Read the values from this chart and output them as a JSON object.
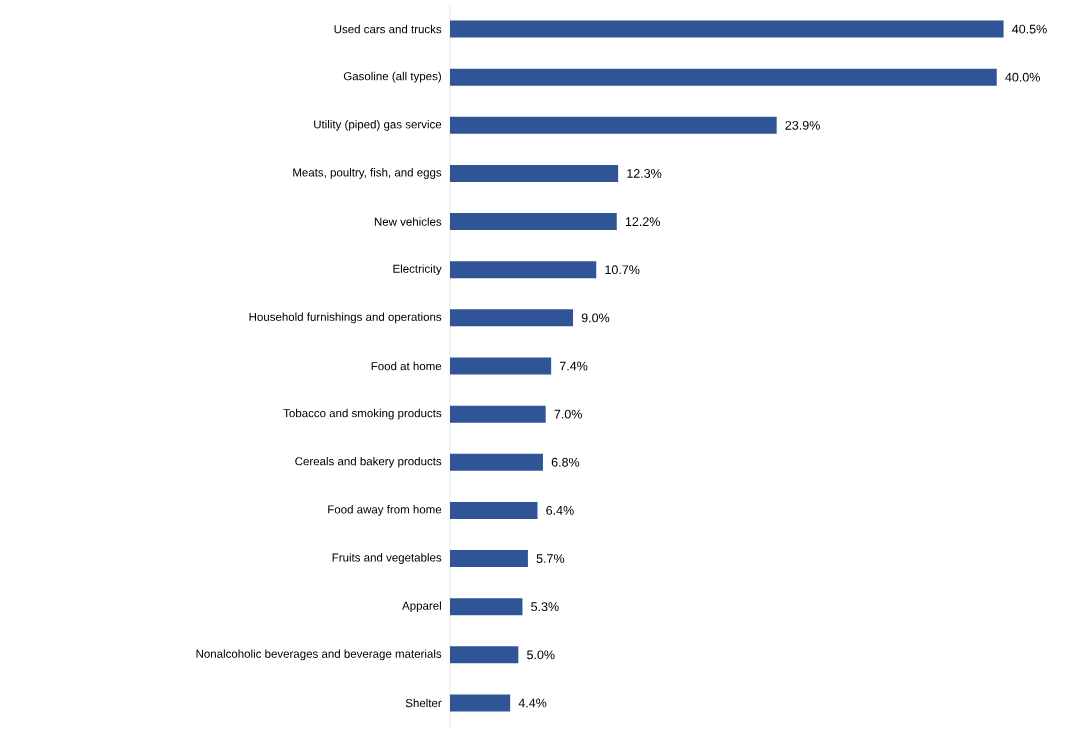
{
  "chart_data": {
    "type": "bar",
    "orientation": "horizontal",
    "color": "#2f5597",
    "categories": [
      "Used cars and trucks",
      "Gasoline (all types)",
      "Utility (piped) gas service",
      "Meats, poultry, fish, and eggs",
      "New vehicles",
      "Electricity",
      "Household furnishings and operations",
      "Food at home",
      "Tobacco and smoking products",
      "Cereals and bakery products",
      "Food away from home",
      "Fruits and vegetables",
      "Apparel",
      "Nonalcoholic beverages and beverage materials",
      "Shelter"
    ],
    "values": [
      40.5,
      40.0,
      23.9,
      12.3,
      12.2,
      10.7,
      9.0,
      7.4,
      7.0,
      6.8,
      6.4,
      5.7,
      5.3,
      5.0,
      4.4
    ],
    "value_labels": [
      "40.5%",
      "40.0%",
      "23.9%",
      "12.3%",
      "12.2%",
      "10.7%",
      "9.0%",
      "7.4%",
      "7.0%",
      "6.8%",
      "6.4%",
      "5.7%",
      "5.3%",
      "5.0%",
      "4.4%"
    ]
  }
}
